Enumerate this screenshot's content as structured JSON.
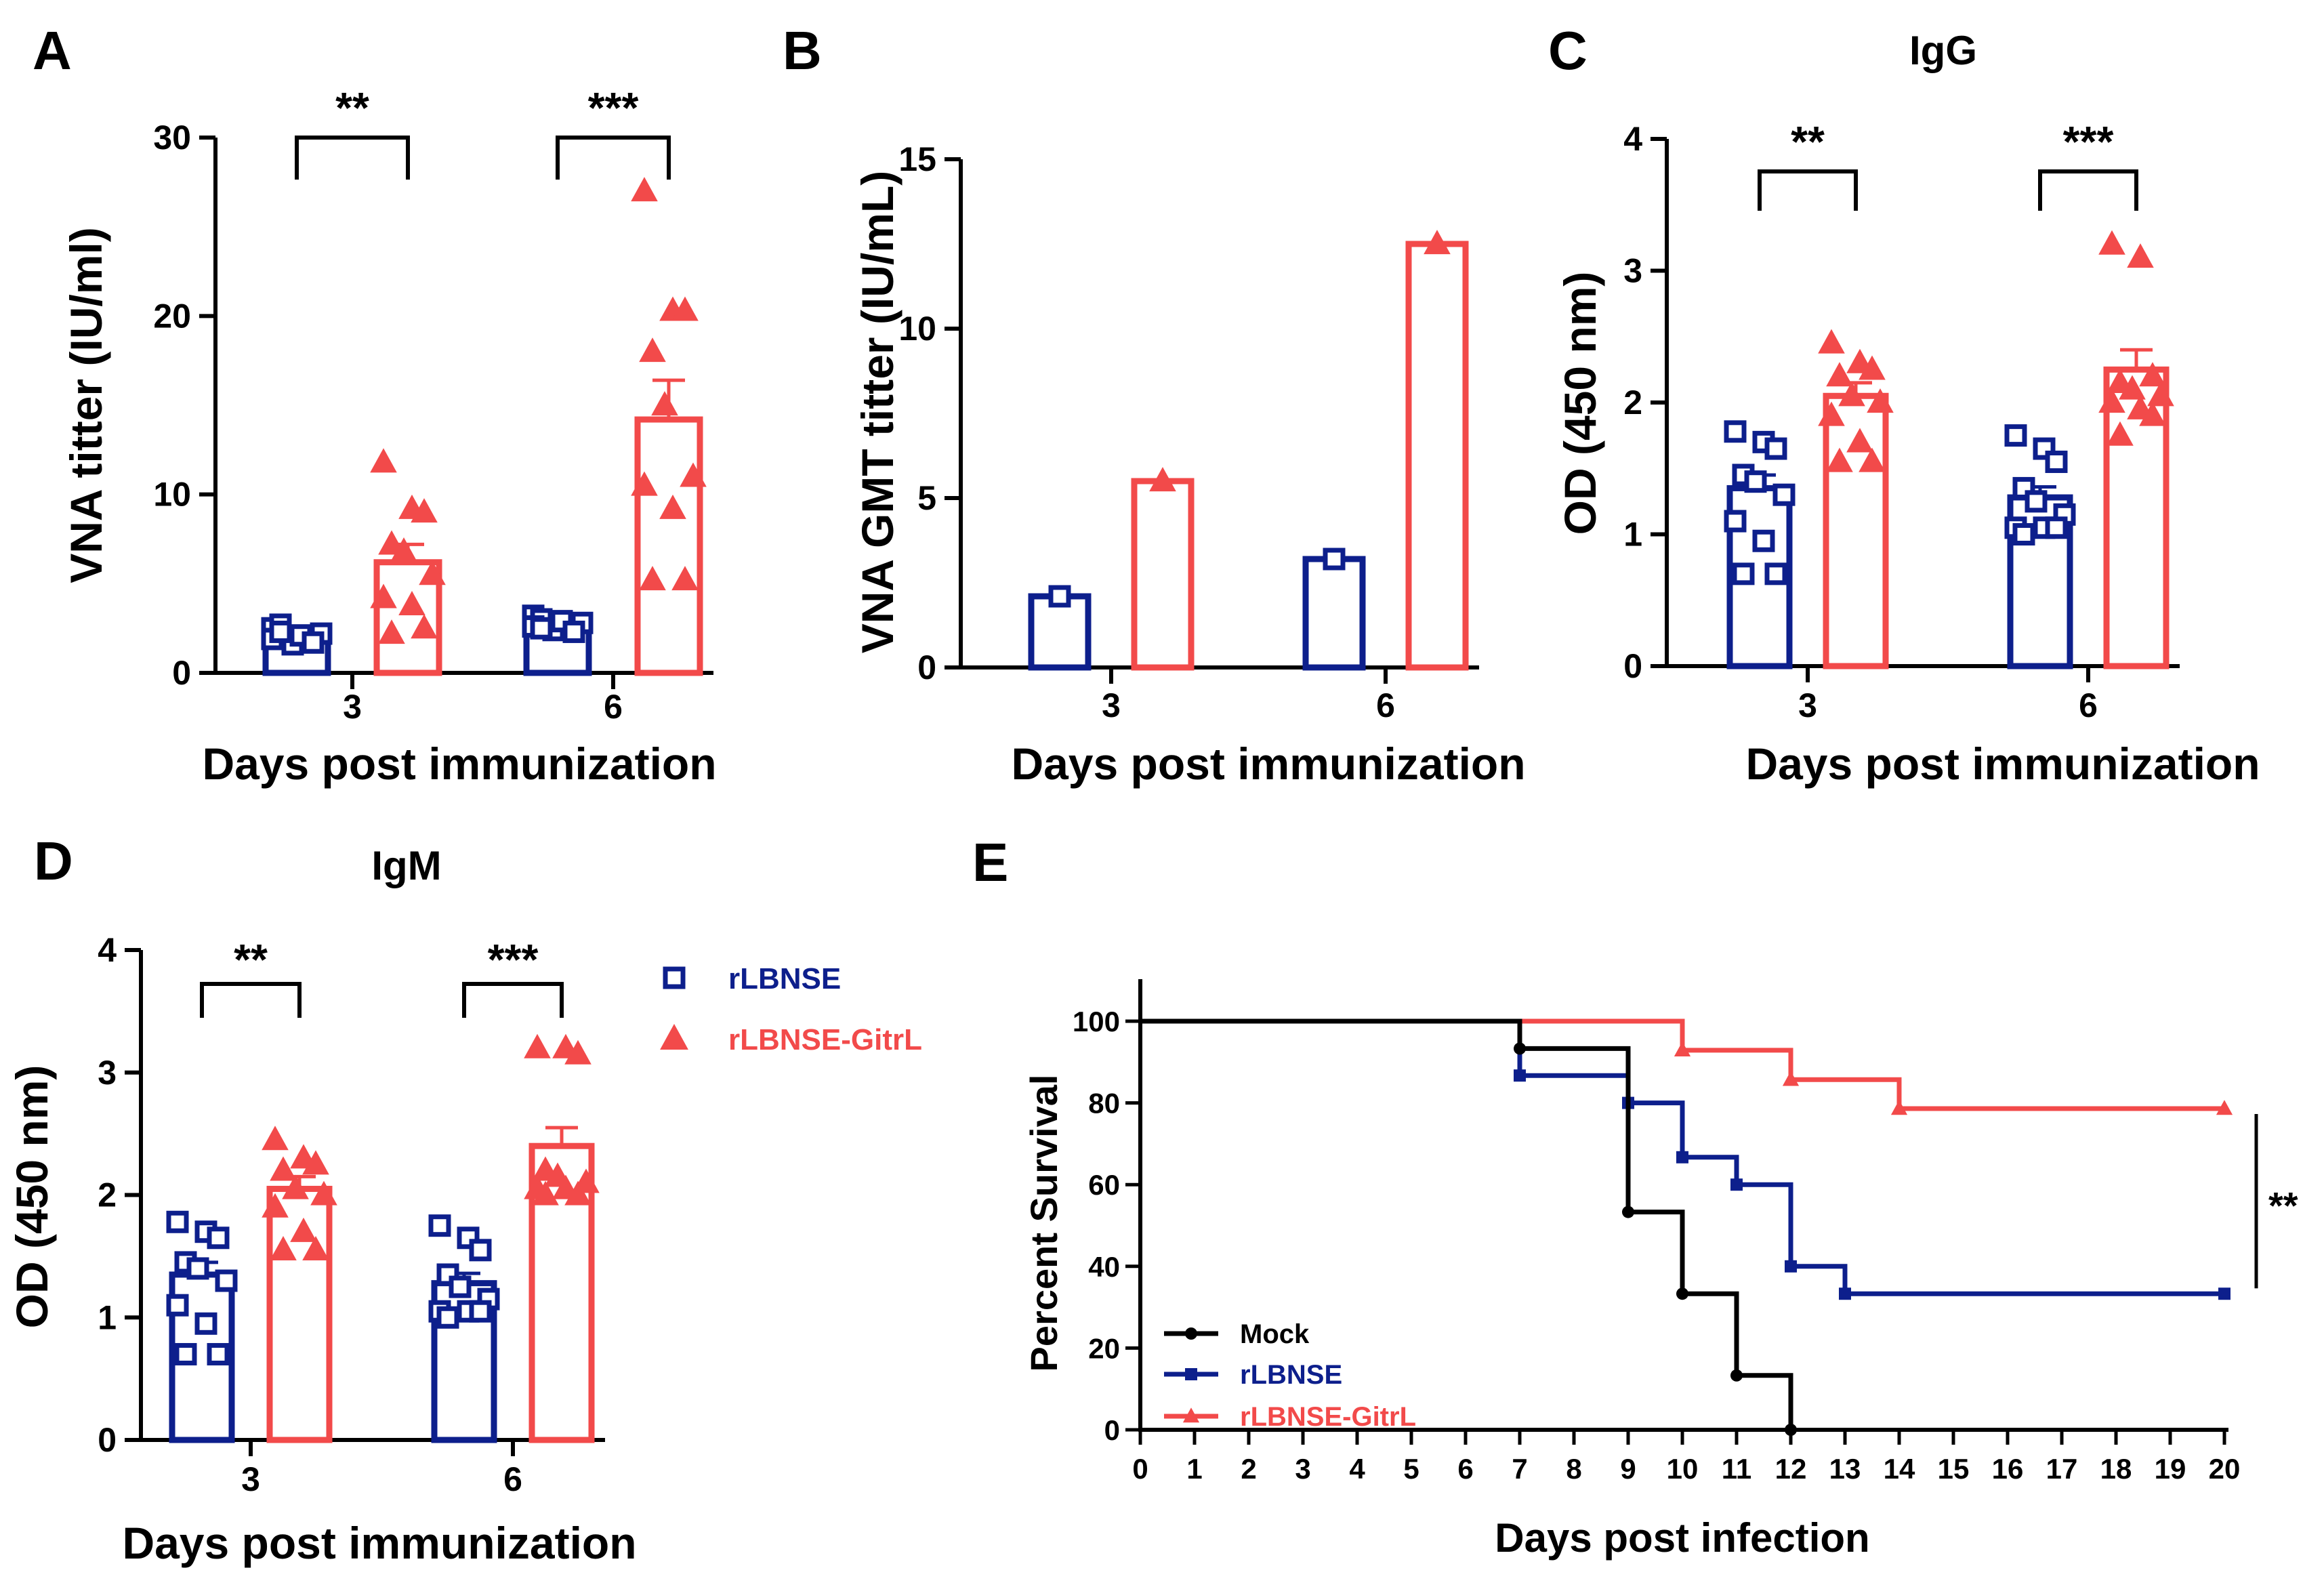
{
  "colors": {
    "rLBNSE": "#0d1f8c",
    "rLBNSE-GitrL": "#f24a4a",
    "Mock": "#000000",
    "axis": "#000000"
  },
  "legend": [
    {
      "label": "rLBNSE",
      "marker": "open-square",
      "color": "#0d1f8c"
    },
    {
      "label": "rLBNSE-GitrL",
      "marker": "triangle",
      "color": "#f24a4a"
    }
  ],
  "chart_data": [
    {
      "panel": "A",
      "title": "",
      "type": "bar",
      "xlabel": "Days post immunization",
      "ylabel": "VNA titter (IU/ml)",
      "categories": [
        "3",
        "6"
      ],
      "ylim": [
        0,
        30
      ],
      "yticks": [
        0,
        10,
        20,
        30
      ],
      "series": [
        {
          "name": "rLBNSE",
          "values": [
            2.0,
            2.7
          ],
          "errors": [
            0.3,
            0.3
          ],
          "points": [
            [
              2.5,
              2.0,
              1.8,
              2.7,
              1.6,
              2.2,
              1.9,
              2.1,
              1.7,
              2.3
            ],
            [
              3.2,
              2.5,
              2.7,
              3.0,
              2.4,
              2.8,
              2.6,
              2.9,
              2.3,
              2.5
            ]
          ]
        },
        {
          "name": "rLBNSE-GitrL",
          "values": [
            6.2,
            14.2
          ],
          "errors": [
            1.0,
            2.2
          ],
          "points": [
            [
              11.8,
              9.2,
              9.0,
              7.2,
              6.8,
              5.5,
              4.2,
              3.8,
              2.5,
              2.2
            ],
            [
              27.0,
              20.3,
              20.3,
              18.0,
              15.0,
              11.0,
              10.5,
              9.2,
              5.2,
              5.2
            ]
          ]
        }
      ],
      "significance": [
        {
          "category": "3",
          "label": "**"
        },
        {
          "category": "6",
          "label": "***"
        }
      ]
    },
    {
      "panel": "B",
      "title": "",
      "type": "bar",
      "xlabel": "Days post immunization",
      "ylabel": "VNA GMT titter (IU/mL)",
      "categories": [
        "3",
        "6"
      ],
      "ylim": [
        0,
        15
      ],
      "yticks": [
        0,
        5,
        10,
        15
      ],
      "series": [
        {
          "name": "rLBNSE",
          "values": [
            2.1,
            3.2
          ],
          "errors": [
            0,
            0
          ],
          "points": [
            [
              2.1
            ],
            [
              3.2
            ]
          ]
        },
        {
          "name": "rLBNSE-GitrL",
          "values": [
            5.5,
            12.5
          ],
          "errors": [
            0,
            0
          ],
          "points": [
            [
              5.5
            ],
            [
              12.5
            ]
          ]
        }
      ],
      "significance": []
    },
    {
      "panel": "C",
      "title": "IgG",
      "type": "bar",
      "xlabel": "Days post immunization",
      "ylabel": "OD (450 nm)",
      "categories": [
        "3",
        "6"
      ],
      "ylim": [
        0,
        4
      ],
      "yticks": [
        0,
        1,
        2,
        3,
        4
      ],
      "series": [
        {
          "name": "rLBNSE",
          "values": [
            1.35,
            1.28
          ],
          "errors": [
            0.1,
            0.08
          ],
          "points": [
            [
              1.78,
              1.7,
              1.65,
              1.45,
              1.4,
              1.3,
              1.1,
              0.95,
              0.7,
              0.7
            ],
            [
              1.75,
              1.65,
              1.55,
              1.35,
              1.25,
              1.15,
              1.05,
              1.05,
              1.05,
              1.0
            ]
          ]
        },
        {
          "name": "rLBNSE-GitrL",
          "values": [
            2.05,
            2.25
          ],
          "errors": [
            0.1,
            0.15
          ],
          "points": [
            [
              2.45,
              2.3,
              2.25,
              2.2,
              2.05,
              2.0,
              1.9,
              1.7,
              1.55,
              1.55
            ],
            [
              3.2,
              3.1,
              2.2,
              2.15,
              2.1,
              2.05,
              2.0,
              1.95,
              1.9,
              1.75
            ]
          ]
        }
      ],
      "significance": [
        {
          "category": "3",
          "label": "**"
        },
        {
          "category": "6",
          "label": "***"
        }
      ]
    },
    {
      "panel": "D",
      "title": "IgM",
      "type": "bar",
      "xlabel": "Days post immunization",
      "ylabel": "OD (450 nm)",
      "categories": [
        "3",
        "6"
      ],
      "ylim": [
        0,
        4
      ],
      "yticks": [
        0,
        1,
        2,
        3,
        4
      ],
      "series": [
        {
          "name": "rLBNSE",
          "values": [
            1.35,
            1.28
          ],
          "errors": [
            0.1,
            0.08
          ],
          "points": [
            [
              1.78,
              1.7,
              1.65,
              1.45,
              1.4,
              1.3,
              1.1,
              0.95,
              0.7,
              0.7
            ],
            [
              1.75,
              1.65,
              1.55,
              1.35,
              1.25,
              1.15,
              1.05,
              1.05,
              1.05,
              1.0
            ]
          ]
        },
        {
          "name": "rLBNSE-GitrL",
          "values": [
            2.05,
            2.4
          ],
          "errors": [
            0.1,
            0.15
          ],
          "points": [
            [
              2.45,
              2.3,
              2.25,
              2.2,
              2.05,
              2.0,
              1.9,
              1.7,
              1.55,
              1.55
            ],
            [
              3.2,
              3.2,
              3.15,
              2.2,
              2.15,
              2.1,
              2.05,
              2.05,
              2.0,
              2.0
            ]
          ]
        }
      ],
      "significance": [
        {
          "category": "3",
          "label": "**"
        },
        {
          "category": "6",
          "label": "***"
        }
      ]
    },
    {
      "panel": "E",
      "title": "",
      "type": "line",
      "xlabel": "Days post infection",
      "ylabel": "Percent Survival",
      "xlim": [
        0,
        20
      ],
      "ylim": [
        0,
        110
      ],
      "xticks": [
        0,
        1,
        2,
        3,
        4,
        5,
        6,
        7,
        8,
        9,
        10,
        11,
        12,
        13,
        14,
        15,
        16,
        17,
        18,
        19,
        20
      ],
      "yticks": [
        0,
        20,
        40,
        60,
        80,
        100
      ],
      "series": [
        {
          "name": "Mock",
          "marker": "circle",
          "x": [
            0,
            7,
            9,
            10,
            11,
            12
          ],
          "y": [
            100,
            93.3,
            53.3,
            33.3,
            13.3,
            0
          ]
        },
        {
          "name": "rLBNSE",
          "marker": "square",
          "x": [
            0,
            7,
            9,
            10,
            11,
            12,
            13,
            20
          ],
          "y": [
            100,
            86.7,
            80,
            66.7,
            60,
            40,
            33.3,
            33.3
          ]
        },
        {
          "name": "rLBNSE-GitrL",
          "marker": "triangle",
          "x": [
            0,
            10,
            12,
            14,
            20
          ],
          "y": [
            100,
            92.9,
            85.7,
            78.6,
            78.6
          ]
        }
      ],
      "significance": [
        {
          "between": [
            "rLBNSE-GitrL",
            "rLBNSE"
          ],
          "label": "**"
        }
      ]
    }
  ]
}
